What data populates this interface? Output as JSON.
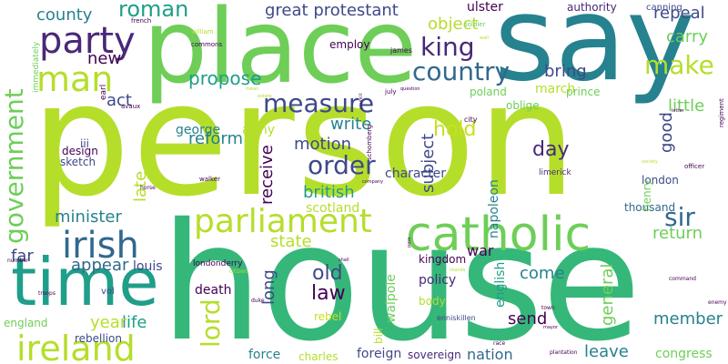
{
  "colors": {
    "yellowgreen": "#b5de2b",
    "lightgreen": "#6ece58",
    "green": "#35b779",
    "teal": "#1f9e89",
    "blue": "#26828e",
    "steel": "#31688e",
    "indigo": "#3e4989",
    "purple": "#482878",
    "darkpurple": "#440154",
    "yellow": "#c8e020"
  },
  "words": {
    "person": "person",
    "house": "house",
    "say": "say",
    "place": "place",
    "time": "time",
    "catholic": "catholic",
    "parliament": "parliament",
    "ireland": "ireland",
    "irish": "irish",
    "government": "government",
    "man": "man",
    "party": "party",
    "country": "country",
    "measure": "measure",
    "king": "king",
    "make": "make",
    "roman": "roman",
    "order": "order",
    "lord": "lord",
    "sir": "sir",
    "great_protestant": "great protestant",
    "county": "county",
    "new": "new",
    "act": "act",
    "propose": "propose",
    "object": "object",
    "repeal": "repeal",
    "carry": "carry",
    "bring": "bring",
    "little": "little",
    "march": "march",
    "ulster": "ulster",
    "authority": "authority",
    "canning": "canning",
    "good": "good",
    "subject": "subject",
    "day": "day",
    "hold": "hold",
    "write": "write",
    "motion": "motion",
    "reform": "reform",
    "british": "british",
    "george": "george",
    "army": "army",
    "late": "late",
    "receive": "receive",
    "scotland": "scotland",
    "state": "state",
    "minister": "minister",
    "appear": "appear",
    "far": "far",
    "long": "long",
    "old": "old",
    "law": "law",
    "return": "return",
    "member": "member",
    "come": "come",
    "send": "send",
    "general": "general",
    "english": "english",
    "leave": "leave",
    "life": "life",
    "year": "year",
    "england": "england",
    "vol": "vol",
    "louis": "louis",
    "death": "death",
    "force": "force",
    "charles": "charles",
    "foreign": "foreign",
    "sovereign": "sovereign",
    "nation": "nation",
    "congress": "congress",
    "policy": "policy",
    "kingdom": "kingdom",
    "walpole": "walpole",
    "body": "body",
    "rebel": "rebel",
    "rebellion": "rebellion",
    "napoleon": "napoleon",
    "war": "war",
    "character": "character",
    "poland": "poland",
    "prince": "prince",
    "oblige": "oblige",
    "london": "london",
    "thousand": "thousand",
    "henry": "henry",
    "design": "design",
    "sketch": "sketch",
    "iii": "iii",
    "employ": "employ",
    "bill": "bill",
    "city": "city",
    "limerick": "limerick",
    "enniskillen": "enniskillen",
    "londonderry": "londonderry",
    "immediately": "immediately",
    "earl": "earl",
    "william": "william",
    "commons": "commons",
    "james": "james",
    "french": "french",
    "soldier": "soldier",
    "july": "july",
    "officer": "officer",
    "regiment": "regiment",
    "walker": "walker",
    "schomberg": "schomberg",
    "avaux": "avaux",
    "citizen": "citizen",
    "number": "number",
    "troops": "troops",
    "duke": "duke",
    "town": "town",
    "enemy": "enemy",
    "command": "command",
    "plantation": "plantation",
    "race": "race",
    "horse": "horse",
    "company": "company",
    "mean": "mean",
    "wall": "wall",
    "question": "question",
    "council": "council",
    "letter": "letter",
    "society": "society",
    "shall": "shall",
    "estate": "estate",
    "islands": "islands",
    "pass": "pass",
    "mayor": "mayor"
  }
}
